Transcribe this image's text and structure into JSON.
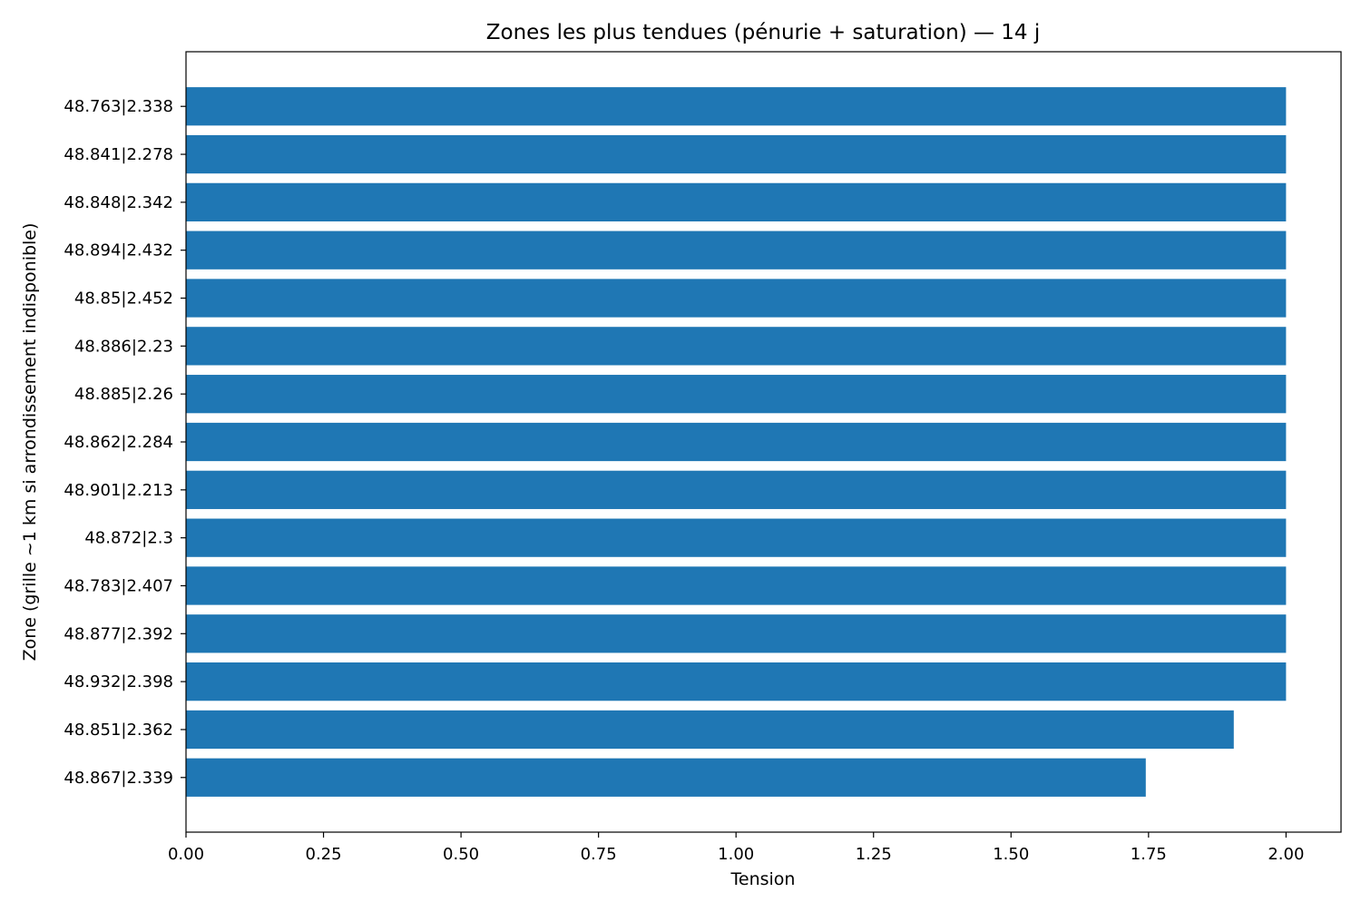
{
  "chart_data": {
    "type": "bar",
    "orientation": "horizontal",
    "title": "Zones les plus tendues (pénurie + saturation) — 14 j",
    "xlabel": "Tension",
    "ylabel": "Zone (grille ~1 km si arrondissement indisponible)",
    "categories": [
      "48.763|2.338",
      "48.841|2.278",
      "48.848|2.342",
      "48.894|2.432",
      "48.85|2.452",
      "48.886|2.23",
      "48.885|2.26",
      "48.862|2.284",
      "48.901|2.213",
      "48.872|2.3",
      "48.783|2.407",
      "48.877|2.392",
      "48.932|2.398",
      "48.851|2.362",
      "48.867|2.339"
    ],
    "values": [
      2.0,
      2.0,
      2.0,
      2.0,
      2.0,
      2.0,
      2.0,
      2.0,
      2.0,
      2.0,
      2.0,
      2.0,
      2.0,
      1.905,
      1.745
    ],
    "xlim": [
      0,
      2.1
    ],
    "xticks": [
      0,
      0.25,
      0.5,
      0.75,
      1.0,
      1.25,
      1.5,
      1.75,
      2.0
    ],
    "xtick_labels": [
      "0.00",
      "0.25",
      "0.50",
      "0.75",
      "1.00",
      "1.25",
      "1.50",
      "1.75",
      "2.00"
    ],
    "grid": false,
    "bar_color": "#1f77b4"
  }
}
